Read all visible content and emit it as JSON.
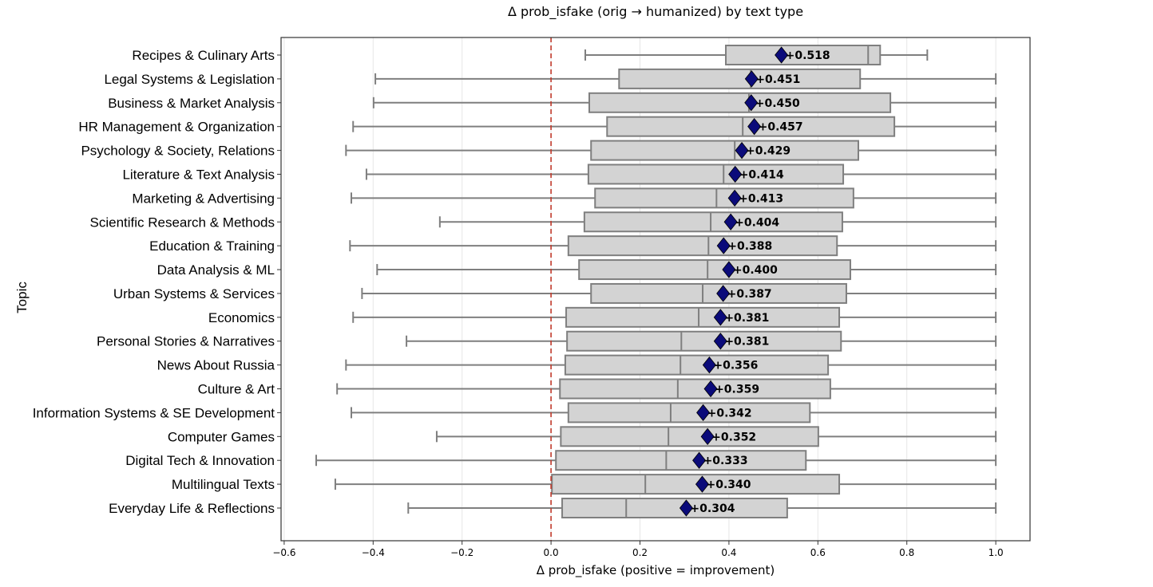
{
  "chart_data": {
    "type": "box",
    "orientation": "horizontal",
    "title": "Δ prob_isfake (orig → humanized) by text type",
    "xlabel": "Δ prob_isfake (positive = improvement)",
    "ylabel": "Topic",
    "xlim": [
      -0.607,
      1.077
    ],
    "xticks": [
      -0.6,
      -0.4,
      -0.2,
      0.0,
      0.2,
      0.4,
      0.6,
      0.8,
      1.0
    ],
    "xtick_labels": [
      "−0.6",
      "−0.4",
      "−0.2",
      "0.0",
      "0.2",
      "0.4",
      "0.6",
      "0.8",
      "1.0"
    ],
    "grid": "vertical",
    "reference_line": {
      "x": 0.0,
      "style": "dashed",
      "color": "#c0392b"
    },
    "colors": {
      "box": "#d3d3d3",
      "box_edge": "#7f7f7f",
      "mean_marker": "#0b0b7a"
    },
    "categories": [
      "Recipes & Culinary Arts",
      "Legal Systems & Legislation",
      "Business & Market Analysis",
      "HR Management & Organization",
      "Psychology & Society, Relations",
      "Literature & Text Analysis",
      "Marketing & Advertising",
      "Scientific Research & Methods",
      "Education & Training",
      "Data Analysis & ML",
      "Urban Systems & Services",
      "Economics",
      "Personal Stories & Narratives",
      "News About Russia",
      "Culture & Art",
      "Information Systems & SE Development",
      "Computer Games",
      "Digital Tech & Innovation",
      "Multilingual Texts",
      "Everyday Life & Reflections"
    ],
    "boxes": [
      {
        "whislo": 0.077,
        "q1": 0.393,
        "med": 0.713,
        "q3": 0.74,
        "whishi": 0.846,
        "mean": 0.518,
        "label": "+0.518"
      },
      {
        "whislo": -0.395,
        "q1": 0.153,
        "med": 0.449,
        "q3": 0.695,
        "whishi": 1.0,
        "mean": 0.451,
        "label": "+0.451"
      },
      {
        "whislo": -0.399,
        "q1": 0.086,
        "med": 0.445,
        "q3": 0.763,
        "whishi": 1.0,
        "mean": 0.45,
        "label": "+0.450"
      },
      {
        "whislo": -0.445,
        "q1": 0.126,
        "med": 0.431,
        "q3": 0.772,
        "whishi": 1.0,
        "mean": 0.457,
        "label": "+0.457"
      },
      {
        "whislo": -0.461,
        "q1": 0.09,
        "med": 0.413,
        "q3": 0.691,
        "whishi": 1.0,
        "mean": 0.429,
        "label": "+0.429"
      },
      {
        "whislo": -0.415,
        "q1": 0.084,
        "med": 0.388,
        "q3": 0.657,
        "whishi": 1.0,
        "mean": 0.414,
        "label": "+0.414"
      },
      {
        "whislo": -0.449,
        "q1": 0.099,
        "med": 0.372,
        "q3": 0.68,
        "whishi": 1.0,
        "mean": 0.413,
        "label": "+0.413"
      },
      {
        "whislo": -0.25,
        "q1": 0.075,
        "med": 0.359,
        "q3": 0.655,
        "whishi": 1.0,
        "mean": 0.404,
        "label": "+0.404"
      },
      {
        "whislo": -0.452,
        "q1": 0.039,
        "med": 0.354,
        "q3": 0.643,
        "whishi": 1.0,
        "mean": 0.388,
        "label": "+0.388"
      },
      {
        "whislo": -0.391,
        "q1": 0.063,
        "med": 0.352,
        "q3": 0.673,
        "whishi": 1.0,
        "mean": 0.4,
        "label": "+0.400"
      },
      {
        "whislo": -0.425,
        "q1": 0.09,
        "med": 0.341,
        "q3": 0.664,
        "whishi": 1.0,
        "mean": 0.387,
        "label": "+0.387"
      },
      {
        "whislo": -0.445,
        "q1": 0.034,
        "med": 0.332,
        "q3": 0.648,
        "whishi": 1.0,
        "mean": 0.381,
        "label": "+0.381"
      },
      {
        "whislo": -0.325,
        "q1": 0.036,
        "med": 0.293,
        "q3": 0.652,
        "whishi": 1.0,
        "mean": 0.381,
        "label": "+0.381"
      },
      {
        "whislo": -0.461,
        "q1": 0.032,
        "med": 0.291,
        "q3": 0.623,
        "whishi": 1.0,
        "mean": 0.356,
        "label": "+0.356"
      },
      {
        "whislo": -0.481,
        "q1": 0.02,
        "med": 0.285,
        "q3": 0.628,
        "whishi": 1.0,
        "mean": 0.359,
        "label": "+0.359"
      },
      {
        "whislo": -0.449,
        "q1": 0.039,
        "med": 0.269,
        "q3": 0.582,
        "whishi": 1.0,
        "mean": 0.342,
        "label": "+0.342"
      },
      {
        "whislo": -0.257,
        "q1": 0.022,
        "med": 0.264,
        "q3": 0.601,
        "whishi": 1.0,
        "mean": 0.352,
        "label": "+0.352"
      },
      {
        "whislo": -0.528,
        "q1": 0.011,
        "med": 0.259,
        "q3": 0.573,
        "whishi": 1.0,
        "mean": 0.333,
        "label": "+0.333"
      },
      {
        "whislo": -0.485,
        "q1": 0.002,
        "med": 0.212,
        "q3": 0.648,
        "whishi": 1.0,
        "mean": 0.34,
        "label": "+0.340"
      },
      {
        "whislo": -0.321,
        "q1": 0.025,
        "med": 0.169,
        "q3": 0.531,
        "whishi": 1.0,
        "mean": 0.304,
        "label": "+0.304"
      }
    ]
  }
}
